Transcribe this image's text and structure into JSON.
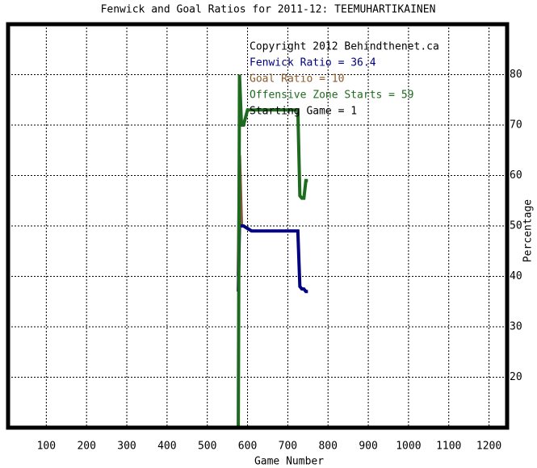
{
  "chart_data": {
    "type": "line",
    "title": "Fenwick and Goal Ratios for 2011-12: TEEMUHARTIKAINEN",
    "x_label": "Game Number",
    "y_label": "Percentage",
    "x": [
      577,
      580,
      585,
      590,
      600,
      610,
      650,
      700,
      725,
      730,
      735,
      740,
      745,
      750
    ],
    "series": [
      {
        "name": "Goal Ratio",
        "color": "#7a5a3a",
        "values": [
          40,
          64,
          50,
          null,
          null,
          null,
          null,
          null,
          null,
          null,
          null,
          null,
          null,
          null
        ]
      },
      {
        "name": "Fenwick Ratio",
        "color": "#000080",
        "values": [
          37,
          50,
          50,
          50,
          49.5,
          49,
          49,
          49,
          49,
          38,
          37.5,
          37.5,
          37,
          37
        ]
      },
      {
        "name": "Offensive Zone Starts",
        "color": "#1e6a1e",
        "values": [
          10,
          80,
          70,
          70,
          73,
          73,
          73,
          73,
          73,
          56,
          55.5,
          55.5,
          59,
          59
        ]
      }
    ],
    "annotations": [
      {
        "text": "Copyright 2012 Behindthenet.ca",
        "color": "#000000"
      },
      {
        "text": "Fenwick Ratio = 36.4",
        "color": "#000080"
      },
      {
        "text": "Goal Ratio = 10",
        "color": "#8b5a2b"
      },
      {
        "text": "Offensive Zone Starts = 59",
        "color": "#1e6a1e"
      },
      {
        "text": "Starting Game = 1",
        "color": "#000000"
      }
    ],
    "xlim": [
      5,
      1245
    ],
    "ylim": [
      10,
      90
    ],
    "xticks": [
      100,
      200,
      300,
      400,
      500,
      600,
      700,
      800,
      900,
      1000,
      1100,
      1200
    ],
    "yticks": [
      20,
      30,
      40,
      50,
      60,
      70,
      80
    ],
    "grid": true
  }
}
